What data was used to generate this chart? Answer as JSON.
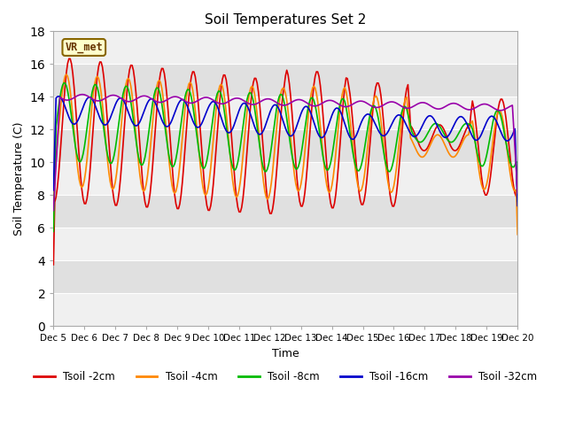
{
  "title": "Soil Temperatures Set 2",
  "xlabel": "Time",
  "ylabel": "Soil Temperature (C)",
  "ylim": [
    0,
    18
  ],
  "yticks": [
    0,
    2,
    4,
    6,
    8,
    10,
    12,
    14,
    16,
    18
  ],
  "xlim": [
    0,
    360
  ],
  "xtick_positions": [
    0,
    24,
    48,
    72,
    96,
    120,
    144,
    168,
    192,
    216,
    240,
    264,
    288,
    312,
    336,
    360
  ],
  "xtick_labels": [
    "Dec 5",
    "Dec 6",
    "Dec 7",
    "Dec 8",
    "Dec 9",
    "Dec 10",
    "Dec 11",
    "Dec 12",
    "Dec 13",
    "Dec 14",
    "Dec 15",
    "Dec 16",
    "Dec 17",
    "Dec 18",
    "Dec 19",
    "Dec 20"
  ],
  "label_box_text": "VR_met",
  "line_colors": [
    "#dd0000",
    "#ff8800",
    "#00bb00",
    "#0000cc",
    "#9900aa"
  ],
  "line_labels": [
    "Tsoil -2cm",
    "Tsoil -4cm",
    "Tsoil -8cm",
    "Tsoil -16cm",
    "Tsoil -32cm"
  ],
  "bg_color": "#e0e0e0",
  "bg_stripe_color": "#f0f0f0",
  "figsize": [
    6.4,
    4.8
  ],
  "dpi": 100
}
